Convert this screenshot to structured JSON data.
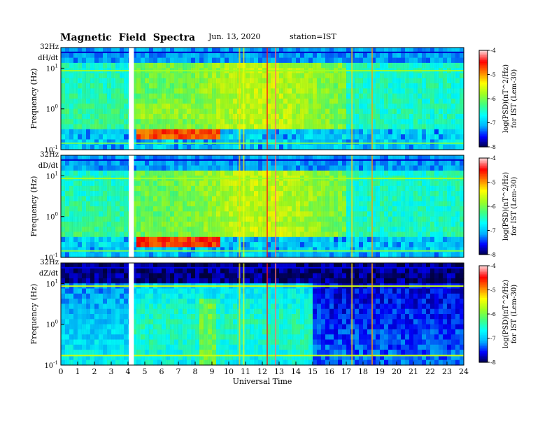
{
  "header": {
    "title": "Magnetic Field Spectra",
    "date": "Jun. 13, 2020",
    "station": "station=IST"
  },
  "chart_data": [
    {
      "type": "heatmap",
      "component": "dH/dt",
      "top_label": "32Hz",
      "ylabel": "Frequency (Hz)",
      "y_scale": "log",
      "y_ticks": [
        {
          "base": "10",
          "exp": "1"
        },
        {
          "base": "10",
          "exp": "0"
        },
        {
          "base": "10",
          "exp": "-1"
        }
      ],
      "x_range": [
        0,
        24
      ],
      "data_gap_ut": [
        4.05,
        4.35
      ],
      "colorbar": {
        "min": -8,
        "max": -4,
        "ticks": [
          "-4",
          "-5",
          "-6",
          "-7",
          "-8"
        ],
        "label": "log(PSD)(nT^2/Hz)",
        "sublabel": "for IST (Lem-30)"
      }
    },
    {
      "type": "heatmap",
      "component": "dD/dt",
      "top_label": "32Hz",
      "ylabel": "Frequency (Hz)",
      "y_scale": "log",
      "y_ticks": [
        {
          "base": "10",
          "exp": "1"
        },
        {
          "base": "10",
          "exp": "0"
        },
        {
          "base": "10",
          "exp": "-1"
        }
      ],
      "x_range": [
        0,
        24
      ],
      "data_gap_ut": [
        4.05,
        4.35
      ],
      "colorbar": {
        "min": -8,
        "max": -4,
        "ticks": [
          "-4",
          "-5",
          "-6",
          "-7",
          "-8"
        ],
        "label": "log(PSD)(nT^2/Hz)",
        "sublabel": "for IST (Lem-30)"
      }
    },
    {
      "type": "heatmap",
      "component": "dZ/dt",
      "top_label": "32Hz",
      "ylabel": "Frequency (Hz)",
      "y_scale": "log",
      "y_ticks": [
        {
          "base": "10",
          "exp": "1"
        },
        {
          "base": "10",
          "exp": "0"
        },
        {
          "base": "10",
          "exp": "-1"
        }
      ],
      "x_range": [
        0,
        24
      ],
      "data_gap_ut": [
        4.05,
        4.35
      ],
      "colorbar": {
        "min": -8,
        "max": -4,
        "ticks": [
          "-4",
          "-5",
          "-6",
          "-7",
          "-8"
        ],
        "label": "log(PSD)(nT^2/Hz)",
        "sublabel": "for IST (Lem-30)"
      }
    }
  ],
  "x_axis": {
    "label": "Universal Time",
    "ticks": [
      "0",
      "1",
      "2",
      "3",
      "4",
      "5",
      "6",
      "7",
      "8",
      "9",
      "10",
      "11",
      "12",
      "13",
      "14",
      "15",
      "16",
      "17",
      "18",
      "19",
      "20",
      "21",
      "22",
      "23",
      "24"
    ]
  },
  "colors": {
    "colormap": [
      "#000040",
      "#0000ff",
      "#00b0ff",
      "#00ffff",
      "#40ff80",
      "#a0ff20",
      "#ffff00",
      "#ff8000",
      "#ff0000",
      "#ffd0d0"
    ]
  }
}
